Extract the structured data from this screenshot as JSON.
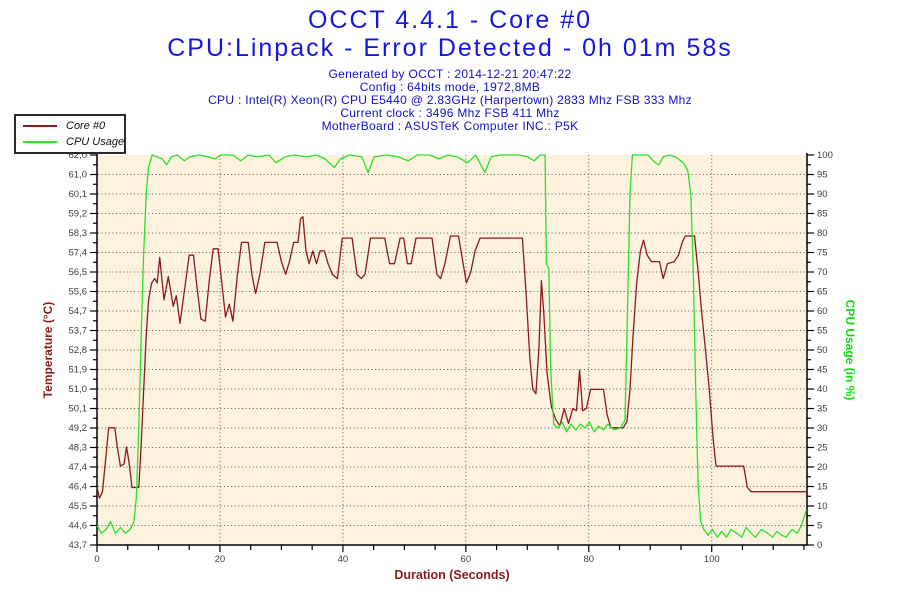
{
  "header": {
    "title": "OCCT 4.4.1 - Core #0",
    "subtitle": "CPU:Linpack - Error Detected - 0h 01m 58s",
    "info_lines": [
      "Generated by OCCT : 2014-12-21 20:47:22",
      "Config : 64bits mode, 1972,8MB",
      "CPU : Intel(R) Xeon(R) CPU E5440 @ 2.83GHz (Harpertown) 2833 Mhz FSB 333 Mhz",
      "Current clock : 3496 Mhz FSB 411 Mhz",
      "MotherBoard : ASUSTeK Computer INC.: P5K"
    ]
  },
  "legend": {
    "items": [
      {
        "label": "Core #0",
        "color": "#8b1a1a"
      },
      {
        "label": "CPU Usage",
        "color": "#2ce02c"
      }
    ]
  },
  "colors": {
    "title_blue": "#1616dd",
    "info_blue": "#1111c4",
    "plot_bg": "#fcf2dd",
    "grid_dots": "#5a5a5a",
    "axis_line": "#000000",
    "tick_label": "#3c3c3c",
    "temp_red": "#8b1a1a",
    "usage_green": "#2ce02c",
    "green_title": "#0ddd0d"
  },
  "chart_data": {
    "type": "line",
    "title": "OCCT 4.4.1 - Core #0",
    "xlabel": "Duration (Seconds)",
    "grid": "dotted",
    "legend_position": "top-left",
    "x_range": [
      0,
      115.5
    ],
    "x_major_ticks": [
      0,
      20,
      40,
      60,
      80,
      100
    ],
    "x_minor_step": 5,
    "left_axis": {
      "label": "Temperature (°C)",
      "range": [
        43.7,
        62.0
      ],
      "ticks": [
        "62,0",
        "61,0",
        "60,1",
        "59,2",
        "58,3",
        "57,4",
        "56,5",
        "55,6",
        "54,7",
        "53,7",
        "52,8",
        "51,9",
        "51,0",
        "50,1",
        "49,2",
        "48,3",
        "47,4",
        "46,4",
        "45,5",
        "44,6",
        "43,7"
      ]
    },
    "right_axis": {
      "label": "CPU Usage (in %)",
      "range": [
        0,
        100
      ],
      "ticks": [
        "100",
        "95",
        "90",
        "85",
        "80",
        "75",
        "70",
        "65",
        "60",
        "55",
        "50",
        "45",
        "40",
        "35",
        "30",
        "25",
        "20",
        "15",
        "10",
        "5",
        "0"
      ]
    },
    "series": [
      {
        "name": "Core #0",
        "axis": "left",
        "unit": "°C",
        "color": "#8b1a1a",
        "points": [
          [
            0,
            46.4
          ],
          [
            0.4,
            45.9
          ],
          [
            0.9,
            46.2
          ],
          [
            1.4,
            47.7
          ],
          [
            1.9,
            49.2
          ],
          [
            2.9,
            49.2
          ],
          [
            3.3,
            48.3
          ],
          [
            3.8,
            47.4
          ],
          [
            4.4,
            47.5
          ],
          [
            4.8,
            48.3
          ],
          [
            5.2,
            47.6
          ],
          [
            5.7,
            46.4
          ],
          [
            6.8,
            46.4
          ],
          [
            7.2,
            48.5
          ],
          [
            7.6,
            51.0
          ],
          [
            8.0,
            53.5
          ],
          [
            8.4,
            55.2
          ],
          [
            8.9,
            56.0
          ],
          [
            9.4,
            56.2
          ],
          [
            9.8,
            56.0
          ],
          [
            10.2,
            57.2
          ],
          [
            10.9,
            55.2
          ],
          [
            11.6,
            56.3
          ],
          [
            12.4,
            54.9
          ],
          [
            12.9,
            55.4
          ],
          [
            13.5,
            54.1
          ],
          [
            14.3,
            55.8
          ],
          [
            15.0,
            57.3
          ],
          [
            15.7,
            57.3
          ],
          [
            16.3,
            55.7
          ],
          [
            16.9,
            54.3
          ],
          [
            17.6,
            54.2
          ],
          [
            18.3,
            56.2
          ],
          [
            18.9,
            57.6
          ],
          [
            19.7,
            57.6
          ],
          [
            20.3,
            56.0
          ],
          [
            20.9,
            54.4
          ],
          [
            21.5,
            55.0
          ],
          [
            22.1,
            54.2
          ],
          [
            22.8,
            56.3
          ],
          [
            23.5,
            57.9
          ],
          [
            24.6,
            57.9
          ],
          [
            25.2,
            56.4
          ],
          [
            25.8,
            55.5
          ],
          [
            26.5,
            56.4
          ],
          [
            27.3,
            57.9
          ],
          [
            29.3,
            57.9
          ],
          [
            30.0,
            57.0
          ],
          [
            30.7,
            56.4
          ],
          [
            31.3,
            57.0
          ],
          [
            32.0,
            57.9
          ],
          [
            32.7,
            57.9
          ],
          [
            33.1,
            59.0
          ],
          [
            33.5,
            59.1
          ],
          [
            34.0,
            57.5
          ],
          [
            34.5,
            56.9
          ],
          [
            35.1,
            57.5
          ],
          [
            35.7,
            56.9
          ],
          [
            36.3,
            57.5
          ],
          [
            37.0,
            57.5
          ],
          [
            37.6,
            56.9
          ],
          [
            38.3,
            56.4
          ],
          [
            39.1,
            56.2
          ],
          [
            39.9,
            58.1
          ],
          [
            41.5,
            58.1
          ],
          [
            42.3,
            56.4
          ],
          [
            43.0,
            56.2
          ],
          [
            43.6,
            56.4
          ],
          [
            44.5,
            58.1
          ],
          [
            46.8,
            58.1
          ],
          [
            47.6,
            56.9
          ],
          [
            48.4,
            56.9
          ],
          [
            49.3,
            58.1
          ],
          [
            49.9,
            58.1
          ],
          [
            50.5,
            56.9
          ],
          [
            51.1,
            56.9
          ],
          [
            51.9,
            58.1
          ],
          [
            54.5,
            58.1
          ],
          [
            55.3,
            56.4
          ],
          [
            55.9,
            56.2
          ],
          [
            56.6,
            56.9
          ],
          [
            57.5,
            58.2
          ],
          [
            58.8,
            58.2
          ],
          [
            59.5,
            57.0
          ],
          [
            60.1,
            56.0
          ],
          [
            60.8,
            56.5
          ],
          [
            61.5,
            57.5
          ],
          [
            62.3,
            58.1
          ],
          [
            69.2,
            58.1
          ],
          [
            69.8,
            55.5
          ],
          [
            70.4,
            52.5
          ],
          [
            70.9,
            51.0
          ],
          [
            71.4,
            50.8
          ],
          [
            71.9,
            53.0
          ],
          [
            72.3,
            56.1
          ],
          [
            72.7,
            54.5
          ],
          [
            73.2,
            51.8
          ],
          [
            73.9,
            50.2
          ],
          [
            74.6,
            49.6
          ],
          [
            75.3,
            49.3
          ],
          [
            76.0,
            50.1
          ],
          [
            76.7,
            49.4
          ],
          [
            77.4,
            50.1
          ],
          [
            78.0,
            50.0
          ],
          [
            78.5,
            51.9
          ],
          [
            79.0,
            50.0
          ],
          [
            79.6,
            50.1
          ],
          [
            80.3,
            51.0
          ],
          [
            82.4,
            51.0
          ],
          [
            83.0,
            49.8
          ],
          [
            83.6,
            49.2
          ],
          [
            85.6,
            49.2
          ],
          [
            86.2,
            49.5
          ],
          [
            86.7,
            51.0
          ],
          [
            87.2,
            53.5
          ],
          [
            87.8,
            56.0
          ],
          [
            88.4,
            57.5
          ],
          [
            88.9,
            58.0
          ],
          [
            89.5,
            57.3
          ],
          [
            90.2,
            57.0
          ],
          [
            91.5,
            57.0
          ],
          [
            92.1,
            56.2
          ],
          [
            92.8,
            56.9
          ],
          [
            93.9,
            57.0
          ],
          [
            94.6,
            57.3
          ],
          [
            95.2,
            57.9
          ],
          [
            95.7,
            58.2
          ],
          [
            97.2,
            58.2
          ],
          [
            97.8,
            56.5
          ],
          [
            98.4,
            54.5
          ],
          [
            99.0,
            52.8
          ],
          [
            99.6,
            51.0
          ],
          [
            100.2,
            48.8
          ],
          [
            100.7,
            47.4
          ],
          [
            105.2,
            47.4
          ],
          [
            105.8,
            46.4
          ],
          [
            106.4,
            46.2
          ],
          [
            115.5,
            46.2
          ]
        ]
      },
      {
        "name": "CPU Usage",
        "axis": "right",
        "unit": "%",
        "color": "#2ce02c",
        "points": [
          [
            0,
            5
          ],
          [
            0.7,
            3
          ],
          [
            1.5,
            4
          ],
          [
            2.2,
            6
          ],
          [
            3.0,
            3
          ],
          [
            3.8,
            4.5
          ],
          [
            4.6,
            3
          ],
          [
            5.4,
            4
          ],
          [
            6.0,
            6
          ],
          [
            6.4,
            12
          ],
          [
            6.8,
            30
          ],
          [
            7.2,
            55
          ],
          [
            7.6,
            75
          ],
          [
            8.0,
            90
          ],
          [
            8.4,
            97
          ],
          [
            9.0,
            100
          ],
          [
            10.6,
            99
          ],
          [
            11.3,
            97.5
          ],
          [
            12.1,
            99.5
          ],
          [
            13.1,
            100
          ],
          [
            14.2,
            98.5
          ],
          [
            15.1,
            99.5
          ],
          [
            16.6,
            100
          ],
          [
            18.1,
            99.5
          ],
          [
            19.1,
            99
          ],
          [
            20.2,
            100
          ],
          [
            22.1,
            100
          ],
          [
            23.4,
            98.5
          ],
          [
            24.6,
            100
          ],
          [
            26.1,
            99.5
          ],
          [
            28.0,
            100
          ],
          [
            29.1,
            98
          ],
          [
            30.6,
            99.5
          ],
          [
            32.1,
            100
          ],
          [
            34.1,
            99.5
          ],
          [
            35.6,
            100
          ],
          [
            37.1,
            99
          ],
          [
            38.6,
            96.8
          ],
          [
            39.6,
            99
          ],
          [
            41.1,
            100
          ],
          [
            43.1,
            99.5
          ],
          [
            44.1,
            95.5
          ],
          [
            45.1,
            99.5
          ],
          [
            47.1,
            100
          ],
          [
            49.1,
            99.5
          ],
          [
            50.6,
            98.5
          ],
          [
            52.1,
            100
          ],
          [
            54.1,
            100
          ],
          [
            55.6,
            99
          ],
          [
            57.1,
            100
          ],
          [
            58.6,
            99.5
          ],
          [
            60.3,
            98
          ],
          [
            61.6,
            100
          ],
          [
            63.1,
            95.5
          ],
          [
            64.1,
            99.5
          ],
          [
            65.6,
            100
          ],
          [
            68.6,
            100
          ],
          [
            70.1,
            99.5
          ],
          [
            71.1,
            98.5
          ],
          [
            72.1,
            100
          ],
          [
            72.9,
            100
          ],
          [
            73.1,
            72
          ],
          [
            73.5,
            71
          ],
          [
            73.8,
            45
          ],
          [
            74.3,
            31
          ],
          [
            75.0,
            30
          ],
          [
            75.7,
            31.5
          ],
          [
            76.4,
            29
          ],
          [
            77.1,
            31
          ],
          [
            77.9,
            29.5
          ],
          [
            78.6,
            31
          ],
          [
            79.4,
            30
          ],
          [
            80.1,
            31.5
          ],
          [
            80.9,
            29
          ],
          [
            81.6,
            30.5
          ],
          [
            82.4,
            29.5
          ],
          [
            83.1,
            31
          ],
          [
            84.1,
            29.5
          ],
          [
            85.1,
            30
          ],
          [
            85.9,
            32
          ],
          [
            86.3,
            60
          ],
          [
            86.7,
            90
          ],
          [
            87.1,
            100
          ],
          [
            88.1,
            100
          ],
          [
            89.6,
            100
          ],
          [
            90.8,
            98
          ],
          [
            91.4,
            97.5
          ],
          [
            92.1,
            99.5
          ],
          [
            93.1,
            100
          ],
          [
            94.1,
            99.5
          ],
          [
            95.4,
            98
          ],
          [
            96.1,
            96
          ],
          [
            96.6,
            90
          ],
          [
            97.0,
            70
          ],
          [
            97.4,
            40
          ],
          [
            97.8,
            15
          ],
          [
            98.2,
            6
          ],
          [
            98.7,
            4
          ],
          [
            99.4,
            2.5
          ],
          [
            100.1,
            4
          ],
          [
            100.9,
            2
          ],
          [
            101.6,
            3.5
          ],
          [
            102.4,
            2
          ],
          [
            103.1,
            4
          ],
          [
            104.1,
            3
          ],
          [
            104.9,
            2
          ],
          [
            105.6,
            4.5
          ],
          [
            106.4,
            3
          ],
          [
            107.1,
            2
          ],
          [
            108.1,
            4
          ],
          [
            109.1,
            3
          ],
          [
            109.9,
            2
          ],
          [
            110.6,
            3.5
          ],
          [
            111.4,
            2.5
          ],
          [
            112.1,
            2
          ],
          [
            113.1,
            4
          ],
          [
            113.9,
            3
          ],
          [
            114.6,
            5
          ],
          [
            115.4,
            9
          ]
        ]
      }
    ]
  }
}
